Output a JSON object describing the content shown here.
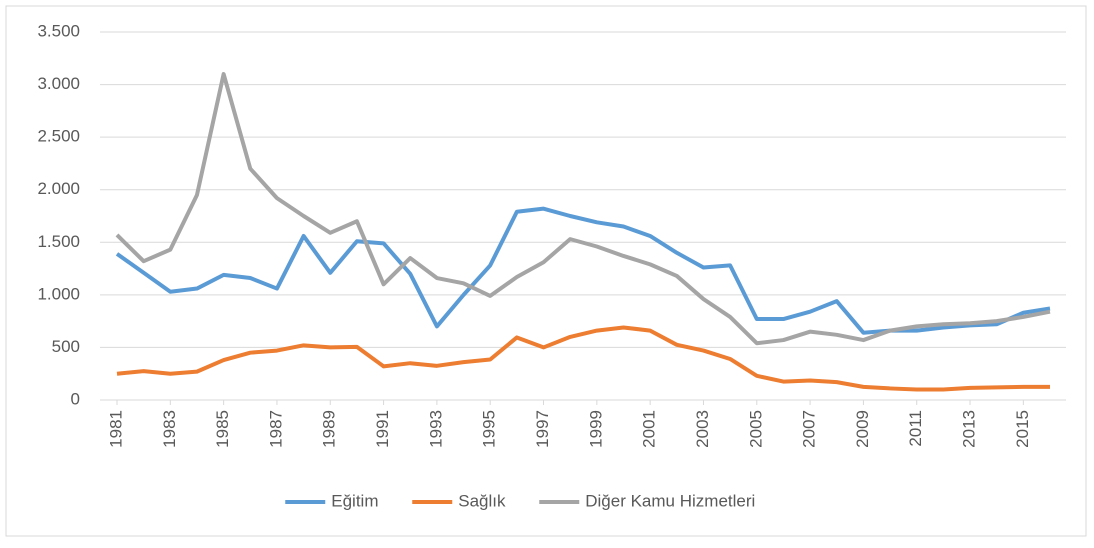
{
  "chart_data": {
    "type": "line",
    "x": [
      1981,
      1982,
      1983,
      1984,
      1985,
      1986,
      1987,
      1988,
      1989,
      1990,
      1991,
      1992,
      1993,
      1994,
      1995,
      1996,
      1997,
      1998,
      1999,
      2000,
      2001,
      2002,
      2003,
      2004,
      2005,
      2006,
      2007,
      2008,
      2009,
      2010,
      2011,
      2012,
      2013,
      2014,
      2015,
      2016
    ],
    "xlim": [
      1981,
      2016
    ],
    "xticks": [
      1981,
      1983,
      1985,
      1987,
      1989,
      1991,
      1993,
      1995,
      1997,
      1999,
      2001,
      2003,
      2005,
      2007,
      2009,
      2011,
      2013,
      2015
    ],
    "ylim": [
      0,
      3500
    ],
    "yticks": [
      0,
      500,
      {
        "value": 1000,
        "label": "1.000"
      },
      {
        "value": 1500,
        "label": "1.500"
      },
      {
        "value": 2000,
        "label": "2.000"
      },
      {
        "value": 2500,
        "label": "2.500"
      },
      {
        "value": 3000,
        "label": "3.000"
      },
      {
        "value": 3500,
        "label": "3.500"
      }
    ],
    "grid": true,
    "legend": "bottom",
    "series": [
      {
        "name": "Eğitim",
        "color": "#5b9bd5",
        "values": [
          1390,
          1210,
          1030,
          1060,
          1190,
          1160,
          1060,
          1560,
          1210,
          1510,
          1490,
          1200,
          700,
          1000,
          1280,
          1790,
          1820,
          1750,
          1690,
          1650,
          1560,
          1400,
          1260,
          1280,
          770,
          770,
          840,
          940,
          640,
          660,
          660,
          690,
          710,
          720,
          830,
          870
        ]
      },
      {
        "name": "Sağlık",
        "color": "#ed7d31",
        "values": [
          250,
          275,
          250,
          270,
          380,
          450,
          470,
          520,
          500,
          505,
          320,
          350,
          325,
          360,
          385,
          595,
          500,
          600,
          660,
          690,
          660,
          525,
          470,
          390,
          230,
          175,
          185,
          170,
          125,
          110,
          100,
          100,
          115,
          120,
          125,
          125
        ]
      },
      {
        "name": "Diğer Kamu Hizmetleri",
        "color": "#a5a5a5",
        "values": [
          1570,
          1320,
          1430,
          1950,
          3100,
          2200,
          1920,
          1750,
          1590,
          1700,
          1100,
          1350,
          1160,
          1110,
          990,
          1170,
          1310,
          1530,
          1460,
          1370,
          1290,
          1180,
          960,
          790,
          540,
          570,
          650,
          620,
          570,
          660,
          700,
          720,
          730,
          750,
          790,
          840
        ]
      }
    ]
  }
}
